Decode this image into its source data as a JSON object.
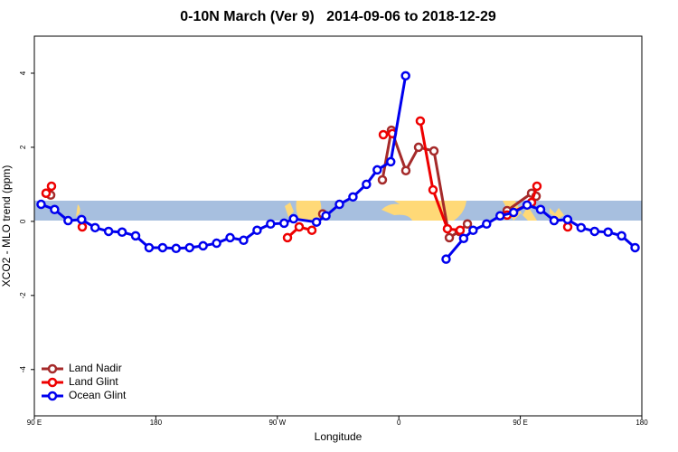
{
  "chart_data": {
    "type": "line",
    "title": "0-10N March (Ver 9)   2014-09-06 to 2018-12-29",
    "x_label": "Longitude",
    "y_label": "XCO2 - MLO trend (ppm)",
    "xlim": [
      90,
      540
    ],
    "xticks": [
      {
        "value": 90,
        "label": "90 E"
      },
      {
        "value": 180,
        "label": "180"
      },
      {
        "value": 270,
        "label": "90 W"
      },
      {
        "value": 360,
        "label": "0"
      },
      {
        "value": 450,
        "label": "90 E"
      },
      {
        "value": 540,
        "label": "180"
      }
    ],
    "ylim": [
      -5.25,
      5
    ],
    "yticks": [
      -4,
      -2,
      0,
      2,
      4
    ],
    "legend_position": "bottom-left",
    "series": [
      {
        "name": "Land Nadir",
        "color": "#a52a2a",
        "x": [
          98.7,
          102.1,
          null,
          303.6,
          null,
          347.8,
          354.5,
          365.2,
          374.6,
          386,
          397.4,
          404.7,
          410.8,
          null,
          440.2,
          458.3,
          461.7
        ],
        "values": [
          0.76,
          0.71,
          null,
          0.2,
          null,
          1.12,
          2.46,
          1.37,
          2.0,
          1.9,
          -0.44,
          -0.27,
          -0.07,
          null,
          0.29,
          0.76,
          0.68
        ]
      },
      {
        "name": "Land Glint",
        "color": "#ee0000",
        "x": [
          98.7,
          102.7,
          null,
          125.5,
          null,
          277.5,
          286.2,
          295.6,
          null,
          348.5,
          355.2,
          null,
          375.9,
          385.3,
          396,
          405.4,
          null,
          440.2,
          458.3,
          462.3,
          null,
          485.1
        ],
        "values": [
          0.76,
          0.95,
          null,
          -0.15,
          null,
          -0.44,
          -0.15,
          -0.24,
          null,
          2.34,
          2.37,
          null,
          2.71,
          0.85,
          -0.2,
          -0.24,
          null,
          0.17,
          0.51,
          0.95,
          null,
          -0.15
        ]
      },
      {
        "name": "Ocean Glint",
        "color": "#0000ee",
        "x": [
          95,
          105,
          115,
          125,
          135,
          145,
          155,
          165,
          175,
          185,
          195,
          205,
          215,
          225,
          235,
          245,
          255,
          265,
          275,
          282,
          299,
          306,
          316,
          326,
          336,
          344,
          354,
          365,
          null,
          395,
          408,
          415,
          425,
          435,
          445,
          455,
          465,
          475,
          485,
          495,
          505,
          515,
          525,
          535
        ],
        "values": [
          0.46,
          0.32,
          0.02,
          0.05,
          -0.17,
          -0.27,
          -0.29,
          -0.39,
          -0.71,
          -0.71,
          -0.73,
          -0.71,
          -0.66,
          -0.59,
          -0.44,
          -0.51,
          -0.24,
          -0.07,
          -0.05,
          0.07,
          -0.02,
          0.15,
          0.46,
          0.66,
          1.0,
          1.39,
          1.61,
          3.93,
          null,
          -1.02,
          -0.46,
          -0.24,
          -0.07,
          0.15,
          0.24,
          0.44,
          0.32,
          0.02,
          0.05,
          -0.17,
          -0.27,
          -0.29,
          -0.39,
          -0.71
        ]
      }
    ]
  }
}
